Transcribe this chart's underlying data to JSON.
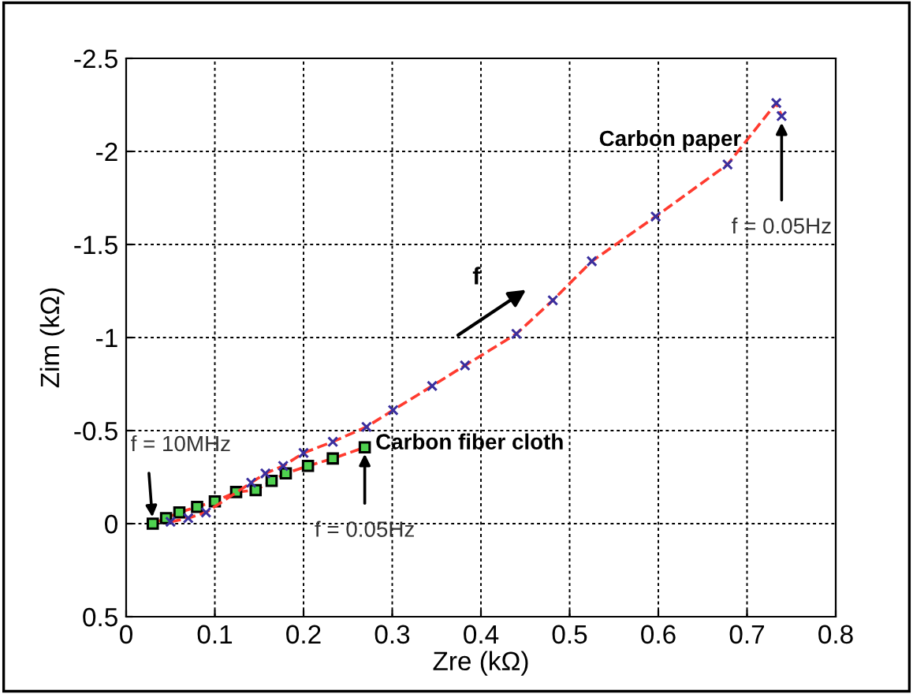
{
  "chart_data": {
    "type": "line",
    "xlabel": "Zre (kΩ)",
    "ylabel": "Zim (kΩ)",
    "xlim": [
      0,
      0.8
    ],
    "ylim": [
      0.5,
      -2.5
    ],
    "xticks": [
      0,
      0.1,
      0.2,
      0.3,
      0.4,
      0.5,
      0.6,
      0.7,
      0.8
    ],
    "yticks": [
      0.5,
      0,
      -0.5,
      -1,
      -1.5,
      -2,
      -2.5
    ],
    "grid": true,
    "line_style": "dashed",
    "series": [
      {
        "name": "Carbon paper",
        "color": "#ff3b2f",
        "marker": "cross",
        "x": [
          0.05,
          0.07,
          0.09,
          0.141,
          0.157,
          0.177,
          0.2,
          0.233,
          0.271,
          0.301,
          0.345,
          0.382,
          0.44,
          0.481,
          0.525,
          0.597,
          0.678,
          0.733,
          0.739
        ],
        "values": [
          -0.01,
          -0.03,
          -0.06,
          -0.22,
          -0.27,
          -0.31,
          -0.38,
          -0.44,
          -0.52,
          -0.61,
          -0.74,
          -0.85,
          -1.02,
          -1.2,
          -1.41,
          -1.65,
          -1.93,
          -2.26,
          -2.19
        ]
      },
      {
        "name": "Carbon fiber cloth",
        "color": "#ff3b2f",
        "marker": "square",
        "x": [
          0.03,
          0.045,
          0.06,
          0.08,
          0.1,
          0.124,
          0.146,
          0.164,
          0.18,
          0.205,
          0.233,
          0.269
        ],
        "values": [
          0,
          -0.03,
          -0.06,
          -0.09,
          -0.12,
          -0.17,
          -0.18,
          -0.23,
          -0.27,
          -0.31,
          -0.35,
          -0.41
        ]
      }
    ],
    "annotations": [
      {
        "text": "f = 10MHz",
        "x": 0.03,
        "y": 0
      },
      {
        "text": "f = 0.05Hz",
        "x": 0.269,
        "y": -0.41
      },
      {
        "text": "f = 0.05Hz",
        "x": 0.739,
        "y": -2.19
      },
      "f"
    ]
  }
}
